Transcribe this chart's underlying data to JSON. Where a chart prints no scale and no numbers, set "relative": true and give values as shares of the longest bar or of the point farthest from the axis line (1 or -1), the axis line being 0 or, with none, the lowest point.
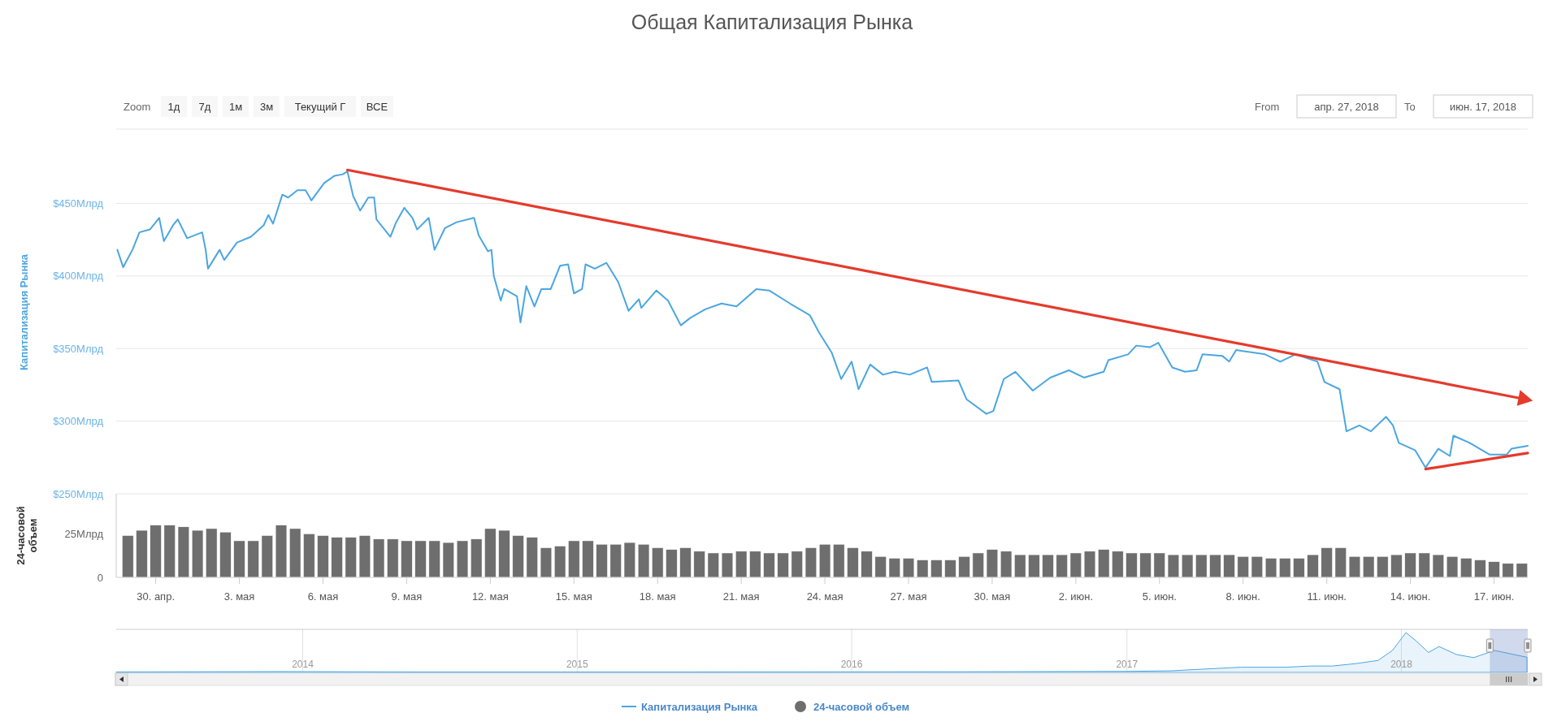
{
  "chart_data": [
    {
      "type": "line",
      "title": "Общая Капитализация Рынка",
      "ylabel": "Капитализация Рынка",
      "annotations": [
        "Zoom",
        "1д",
        "7д",
        "1м",
        "3м",
        "Текущий Г",
        "ВСЕ",
        "From",
        "апр. 27, 2018",
        "To",
        "июн. 17, 2018"
      ],
      "xlim": [
        "2018-04-28T14:00",
        "2018-06-18T05:00"
      ],
      "ylim": [
        250,
        500
      ],
      "yticks": [
        {
          "value": 250,
          "label": "$250Млрд"
        },
        {
          "value": 300,
          "label": "$300Млрд"
        },
        {
          "value": 350,
          "label": "$350Млрд"
        },
        {
          "value": 400,
          "label": "$400Млрд"
        },
        {
          "value": 450,
          "label": "$450Млрд"
        }
      ],
      "tick_labels": "y",
      "grid": "y",
      "legend": "bottom",
      "series": [
        {
          "name": "Капитализация Рынка",
          "color": "#4ba6e0",
          "x": [
            "2018-04-28T15:00",
            "2018-04-28T20:00",
            "2018-04-29T04:00",
            "2018-04-29T10:00",
            "2018-04-29T19:00",
            "2018-04-30T03:00",
            "2018-04-30T07:00",
            "2018-04-30T15:00",
            "2018-04-30T19:00",
            "2018-05-01T03:00",
            "2018-05-01T16:00",
            "2018-05-01T19:00",
            "2018-05-01T21:00",
            "2018-05-02T07:00",
            "2018-05-02T11:00",
            "2018-05-02T22:00",
            "2018-05-03T10:00",
            "2018-05-03T21:00",
            "2018-05-04T01:00",
            "2018-05-04T05:00",
            "2018-05-04T13:00",
            "2018-05-04T18:00",
            "2018-05-05T02:00",
            "2018-05-05T09:00",
            "2018-05-05T14:00",
            "2018-05-06T01:00",
            "2018-05-06T10:00",
            "2018-05-06T17:00",
            "2018-05-06T21:00",
            "2018-05-07T02:00",
            "2018-05-07T08:00",
            "2018-05-07T15:00",
            "2018-05-07T20:00",
            "2018-05-07T22:00",
            "2018-05-08T10:00",
            "2018-05-08T15:00",
            "2018-05-08T22:00",
            "2018-05-09T05:00",
            "2018-05-09T09:00",
            "2018-05-09T19:00",
            "2018-05-10T00:00",
            "2018-05-10T09:00",
            "2018-05-10T19:00",
            "2018-05-11T10:00",
            "2018-05-11T14:00",
            "2018-05-11T22:00",
            "2018-05-12T01:00",
            "2018-05-12T03:00",
            "2018-05-12T09:00",
            "2018-05-12T12:00",
            "2018-05-12T23:00",
            "2018-05-13T02:00",
            "2018-05-13T07:00",
            "2018-05-13T14:00",
            "2018-05-13T20:00",
            "2018-05-14T04:00",
            "2018-05-14T12:00",
            "2018-05-14T19:00",
            "2018-05-15T00:00",
            "2018-05-15T07:00",
            "2018-05-15T10:00",
            "2018-05-15T18:00",
            "2018-05-16T04:00",
            "2018-05-16T14:00",
            "2018-05-16T23:00",
            "2018-05-17T08:00",
            "2018-05-17T10:00",
            "2018-05-17T23:00",
            "2018-05-18T09:00",
            "2018-05-18T20:00",
            "2018-05-19T04:00",
            "2018-05-19T17:00",
            "2018-05-20T07:00",
            "2018-05-20T20:00",
            "2018-05-21T13:00",
            "2018-05-22T00:00",
            "2018-05-22T18:00",
            "2018-05-23T11:00",
            "2018-05-23T19:00",
            "2018-05-24T06:00",
            "2018-05-24T14:00",
            "2018-05-24T23:00",
            "2018-05-25T05:00",
            "2018-05-25T15:00",
            "2018-05-26T02:00",
            "2018-05-26T12:00",
            "2018-05-27T01:00",
            "2018-05-27T16:00",
            "2018-05-27T20:00",
            "2018-05-28T19:00",
            "2018-05-29T02:00",
            "2018-05-29T19:00",
            "2018-05-30T01:00",
            "2018-05-30T10:00",
            "2018-05-30T20:00",
            "2018-05-31T11:00",
            "2018-06-01T02:00",
            "2018-06-01T18:00",
            "2018-06-02T07:00",
            "2018-06-03T00:00",
            "2018-06-03T04:00",
            "2018-06-03T21:00",
            "2018-06-04T04:00",
            "2018-06-04T16:00",
            "2018-06-04T23:00",
            "2018-06-05T11:00",
            "2018-06-05T22:00",
            "2018-06-06T08:00",
            "2018-06-06T13:00",
            "2018-06-07T06:00",
            "2018-06-07T12:00",
            "2018-06-07T18:00",
            "2018-06-08T19:00",
            "2018-06-09T08:00",
            "2018-06-09T21:00",
            "2018-06-10T16:00",
            "2018-06-10T22:00",
            "2018-06-11T11:00",
            "2018-06-11T17:00",
            "2018-06-12T04:00",
            "2018-06-12T14:00",
            "2018-06-13T03:00",
            "2018-06-13T09:00",
            "2018-06-13T14:00",
            "2018-06-14T04:00",
            "2018-06-14T13:00",
            "2018-06-15T00:00",
            "2018-06-15T10:00",
            "2018-06-15T13:00",
            "2018-06-16T03:00",
            "2018-06-16T20:00",
            "2018-06-17T11:00",
            "2018-06-17T15:00",
            "2018-06-18T05:00"
          ],
          "values": [
            418,
            406,
            418,
            430,
            432,
            440,
            424,
            435,
            439,
            426,
            430,
            418,
            405,
            418,
            411,
            423,
            427,
            435,
            442,
            436,
            456,
            454,
            459,
            459,
            452,
            464,
            469,
            470,
            472,
            455,
            445,
            454,
            454,
            439,
            427,
            437,
            447,
            440,
            432,
            440,
            418,
            433,
            437,
            440,
            428,
            417,
            418,
            400,
            383,
            391,
            386,
            368,
            393,
            379,
            391,
            391,
            407,
            408,
            388,
            391,
            408,
            405,
            409,
            396,
            376,
            384,
            378,
            390,
            383,
            366,
            371,
            377,
            381,
            379,
            391,
            390,
            381,
            373,
            361,
            347,
            329,
            341,
            322,
            339,
            332,
            334,
            332,
            337,
            327,
            328,
            315,
            305,
            307,
            329,
            334,
            321,
            330,
            335,
            330,
            334,
            342,
            346,
            352,
            351,
            354,
            337,
            334,
            335,
            346,
            345,
            341,
            349,
            346,
            341,
            346,
            341,
            327,
            322,
            293,
            297,
            293,
            303,
            297,
            285,
            280,
            268,
            281,
            276,
            290,
            285,
            277,
            277,
            281,
            283
          ]
        },
        {
          "type": "line",
          "color": "#e53a2c",
          "x": [
            "2018-05-06T21:00",
            "2018-06-17T21:00"
          ],
          "values": [
            473,
            316
          ]
        },
        {
          "type": "line",
          "color": "#e53a2c",
          "x": [
            "2018-06-14T13:00",
            "2018-06-18T05:00"
          ],
          "values": [
            267,
            278
          ]
        }
      ]
    },
    {
      "type": "bar",
      "ylabel": "24-часовой объем",
      "xlim": [
        "2018-04-28T14:00",
        "2018-06-18T05:00"
      ],
      "ylim": [
        0,
        48
      ],
      "yticks": [
        0,
        {
          "value": 25,
          "label": "25Млрд"
        }
      ],
      "legend": "bottom",
      "xticks": [
        {
          "value": "2018-04-30",
          "label": "30. апр."
        },
        {
          "value": "2018-05-03",
          "label": "3. мая"
        },
        {
          "value": "2018-05-06",
          "label": "6. мая"
        },
        {
          "value": "2018-05-09",
          "label": "9. мая"
        },
        {
          "value": "2018-05-12",
          "label": "12. мая"
        },
        {
          "value": "2018-05-15",
          "label": "15. мая"
        },
        {
          "value": "2018-05-18",
          "label": "18. мая"
        },
        {
          "value": "2018-05-21",
          "label": "21. мая"
        },
        {
          "value": "2018-05-24",
          "label": "24. мая"
        },
        {
          "value": "2018-05-27",
          "label": "27. мая"
        },
        {
          "value": "2018-05-30",
          "label": "30. мая"
        },
        {
          "value": "2018-06-02",
          "label": "2. июн."
        },
        {
          "value": "2018-06-05",
          "label": "5. июн."
        },
        {
          "value": "2018-06-08",
          "label": "8. июн."
        },
        {
          "value": "2018-06-11",
          "label": "11. июн."
        },
        {
          "value": "2018-06-14",
          "label": "14. июн."
        },
        {
          "value": "2018-06-17",
          "label": "17. июн."
        }
      ],
      "series": [
        {
          "name": "24-часовой объем",
          "color": "#6e6e6e",
          "x": [
            "2018-04-29T00:00",
            "2018-04-29T12:00",
            "2018-04-30T00:00",
            "2018-04-30T12:00",
            "2018-05-01T00:00",
            "2018-05-01T12:00",
            "2018-05-02T00:00",
            "2018-05-02T12:00",
            "2018-05-03T00:00",
            "2018-05-03T12:00",
            "2018-05-04T00:00",
            "2018-05-04T12:00",
            "2018-05-05T00:00",
            "2018-05-05T12:00",
            "2018-05-06T00:00",
            "2018-05-06T12:00",
            "2018-05-07T00:00",
            "2018-05-07T12:00",
            "2018-05-08T00:00",
            "2018-05-08T12:00",
            "2018-05-09T00:00",
            "2018-05-09T12:00",
            "2018-05-10T00:00",
            "2018-05-10T12:00",
            "2018-05-11T00:00",
            "2018-05-11T12:00",
            "2018-05-12T00:00",
            "2018-05-12T12:00",
            "2018-05-13T00:00",
            "2018-05-13T12:00",
            "2018-05-14T00:00",
            "2018-05-14T12:00",
            "2018-05-15T00:00",
            "2018-05-15T12:00",
            "2018-05-16T00:00",
            "2018-05-16T12:00",
            "2018-05-17T00:00",
            "2018-05-17T12:00",
            "2018-05-18T00:00",
            "2018-05-18T12:00",
            "2018-05-19T00:00",
            "2018-05-19T12:00",
            "2018-05-20T00:00",
            "2018-05-20T12:00",
            "2018-05-21T00:00",
            "2018-05-21T12:00",
            "2018-05-22T00:00",
            "2018-05-22T12:00",
            "2018-05-23T00:00",
            "2018-05-23T12:00",
            "2018-05-24T00:00",
            "2018-05-24T12:00",
            "2018-05-25T00:00",
            "2018-05-25T12:00",
            "2018-05-26T00:00",
            "2018-05-26T12:00",
            "2018-05-27T00:00",
            "2018-05-27T12:00",
            "2018-05-28T00:00",
            "2018-05-28T12:00",
            "2018-05-29T00:00",
            "2018-05-29T12:00",
            "2018-05-30T00:00",
            "2018-05-30T12:00",
            "2018-05-31T00:00",
            "2018-05-31T12:00",
            "2018-06-01T00:00",
            "2018-06-01T12:00",
            "2018-06-02T00:00",
            "2018-06-02T12:00",
            "2018-06-03T00:00",
            "2018-06-03T12:00",
            "2018-06-04T00:00",
            "2018-06-04T12:00",
            "2018-06-05T00:00",
            "2018-06-05T12:00",
            "2018-06-06T00:00",
            "2018-06-06T12:00",
            "2018-06-07T00:00",
            "2018-06-07T12:00",
            "2018-06-08T00:00",
            "2018-06-08T12:00",
            "2018-06-09T00:00",
            "2018-06-09T12:00",
            "2018-06-10T00:00",
            "2018-06-10T12:00",
            "2018-06-11T00:00",
            "2018-06-11T12:00",
            "2018-06-12T00:00",
            "2018-06-12T12:00",
            "2018-06-13T00:00",
            "2018-06-13T12:00",
            "2018-06-14T00:00",
            "2018-06-14T12:00",
            "2018-06-15T00:00",
            "2018-06-15T12:00",
            "2018-06-16T00:00",
            "2018-06-16T12:00",
            "2018-06-17T00:00",
            "2018-06-17T12:00",
            "2018-06-18T00:00"
          ],
          "values": [
            24,
            27,
            30,
            30,
            29,
            27,
            28,
            26,
            21,
            21,
            24,
            30,
            28,
            25,
            24,
            23,
            23,
            24,
            22,
            22,
            21,
            21,
            21,
            20,
            21,
            22,
            28,
            27,
            24,
            23,
            17,
            18,
            21,
            21,
            19,
            19,
            20,
            19,
            17,
            16,
            17,
            15,
            14,
            14,
            15,
            15,
            14,
            14,
            15,
            17,
            19,
            19,
            17,
            15,
            12,
            11,
            11,
            10,
            10,
            10,
            12,
            14,
            16,
            15,
            13,
            13,
            13,
            13,
            14,
            15,
            16,
            15,
            14,
            14,
            14,
            13,
            13,
            13,
            13,
            13,
            12,
            12,
            11,
            11,
            11,
            13,
            17,
            17,
            12,
            12,
            12,
            13,
            14,
            14,
            13,
            12,
            11,
            10,
            9,
            8,
            8
          ]
        }
      ]
    },
    {
      "type": "area",
      "relative": true,
      "xlim": [
        "2013-04-28",
        "2018-06-18"
      ],
      "tick_labels": "x",
      "grid": "x",
      "bands": [
        {
          "axis": "x",
          "from": "2018-04-28T14:00",
          "to": "2018-06-18T05:00",
          "color": "#6685c2"
        }
      ],
      "xticks": [
        {
          "value": "2014",
          "label": "2014"
        },
        {
          "value": "2015",
          "label": "2015"
        },
        {
          "value": "2016",
          "label": "2016"
        },
        {
          "value": "2017",
          "label": "2017"
        },
        {
          "value": "2018",
          "label": "2018"
        }
      ],
      "series": [
        {
          "color": "#4ba6e0",
          "x": [
            "2013-04-28",
            "2013-12-01",
            "2014-06-01",
            "2015-06-01",
            "2016-06-01",
            "2017-01-01",
            "2017-03-01",
            "2017-05-01",
            "2017-06-01",
            "2017-08-01",
            "2017-09-01",
            "2017-10-01",
            "2017-11-01",
            "2017-12-01",
            "2017-12-20",
            "2018-01-07",
            "2018-01-20",
            "2018-02-06",
            "2018-02-20",
            "2018-03-15",
            "2018-04-07",
            "2018-05-05",
            "2018-06-17"
          ],
          "values": [
            0.01,
            0.02,
            0.01,
            0.01,
            0.015,
            0.025,
            0.04,
            0.1,
            0.13,
            0.13,
            0.16,
            0.16,
            0.22,
            0.3,
            0.55,
            1,
            0.8,
            0.5,
            0.65,
            0.45,
            0.37,
            0.55,
            0.38
          ]
        }
      ]
    }
  ]
}
